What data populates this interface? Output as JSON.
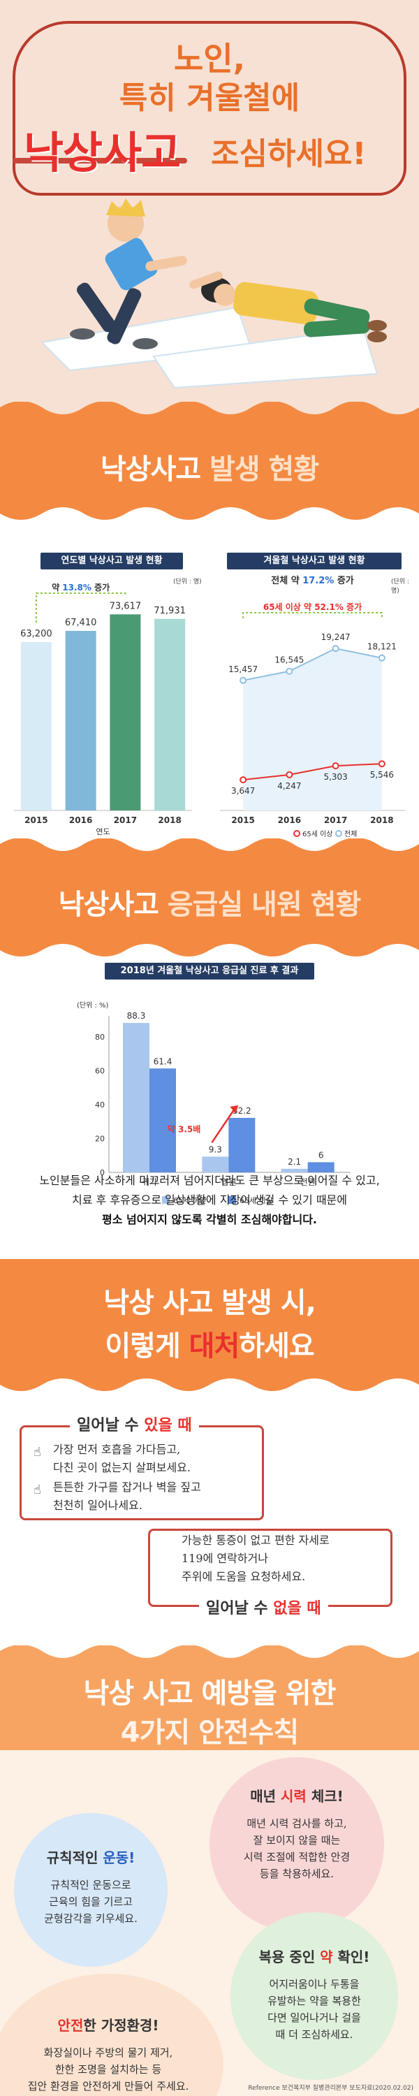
{
  "hero": {
    "line1": "노인,",
    "line2": "특히 겨울철에",
    "big": "낙상사고",
    "after": "조심하세요!"
  },
  "section1": {
    "title_part1": "낙상사고",
    "title_part2": "발생 현황"
  },
  "section2": {
    "title_part1": "낙상사고",
    "title_part2": "응급실 내원 현황"
  },
  "section3": {
    "title_line1": "낙상 사고 발생 시,",
    "title_line2_a": "이렇게",
    "title_line2_b": "대처",
    "title_line2_c": "하세요",
    "box1": {
      "title_a": "일어날 수",
      "title_b": "있을 때",
      "items": [
        "가장 먼저 호흡을 가다듬고,",
        "다친 곳이 없는지 살펴보세요.",
        "튼튼한 가구를 잡거나 벽을 짚고",
        "천천히 일어나세요."
      ]
    },
    "box2": {
      "title_a": "일어날 수",
      "title_b": "없을 때",
      "items": [
        "가능한 통증이 없고 편한 자세로",
        "119에 연락하거나",
        "주위에 도움을 요청하세요."
      ]
    }
  },
  "section4": {
    "title_line1": "낙상 사고 예방을 위한",
    "title_line2": "4가지 안전수칙",
    "tips": [
      {
        "title_a": "규칙적인",
        "title_b": "운동!",
        "accent": "#2a5fbf",
        "lines": [
          "규칙적인 운동으로",
          "근육의 힘을 기르고",
          "균형감각을 키우세요."
        ]
      },
      {
        "title_a": "매년",
        "title_b": "시력",
        "title_c": "체크!",
        "accent": "#e8302d",
        "lines": [
          "매년 시력 검사를 하고,",
          "잘 보이지 않을 때는",
          "시력 조절에 적합한 안경",
          "등을 착용하세요."
        ]
      },
      {
        "title_a": "복용 중인",
        "title_b": "약",
        "title_c": "확인!",
        "accent": "#e8302d",
        "lines": [
          "어지러움이나 두통을",
          "유발하는 약을 복용한",
          "다면 일어나거나 걸을",
          "때 더 조심하세요."
        ]
      },
      {
        "title_a": "안전",
        "title_b": "한 가정환경!",
        "accent": "#e8302d",
        "lines": [
          "화장실이나 주방의 물기 제거,",
          "한한 조명을 설치하는 등",
          "집안 환경을 안전하게 만들어 주세요."
        ]
      }
    ],
    "reference": "Reference 보건복지부 질병관리본부 보도자료(2020.02.02)"
  },
  "note": {
    "line1": "노인분들은 사소하게 미끄러져 넘어지더라도 큰 부상으로 이어질 수 있고,",
    "line2": "치료 후 후유증으로 일상생활에 지장이 생길 수 있기 때문에",
    "line3": "평소 넘어지지 않도록 각별히 조심해야합니다."
  },
  "chart_data": [
    {
      "type": "bar",
      "title": "연도별 낙상사고 발생 현황",
      "unit": "(단위 : 명)",
      "xlabel": "연도",
      "categories": [
        "2015",
        "2016",
        "2017",
        "2018"
      ],
      "values": [
        63200,
        67410,
        73617,
        71931
      ],
      "value_labels": [
        "63,200",
        "67,410",
        "73,617",
        "71,931"
      ],
      "annotation": "약 13.8% 증가",
      "annotation_pct": "13.8%",
      "colors": [
        "#d6ebf5",
        "#7fb8d8",
        "#4a9a73",
        "#a8d9d5"
      ],
      "ylim": [
        0,
        80000
      ]
    },
    {
      "type": "line",
      "title": "겨울철 낙상사고 발생 현황",
      "unit": "(단위 : 명)",
      "annotation_total": "전체 약 17.2% 증가",
      "annotation_total_pct": "17.2%",
      "annotation_65": "65세 이상 약 52.1% 증가",
      "categories": [
        "2015",
        "2016",
        "2017",
        "2018"
      ],
      "series": [
        {
          "name": "65세 이상",
          "values": [
            3647,
            4247,
            5303,
            5546
          ],
          "labels": [
            "3,647",
            "4,247",
            "5,303",
            "5,546"
          ],
          "color": "#e8302d"
        },
        {
          "name": "전체",
          "values": [
            15457,
            16545,
            19247,
            18121
          ],
          "labels": [
            "15,457",
            "16,545",
            "19,247",
            "18,121"
          ],
          "color": "#8fc0e0"
        }
      ],
      "ylim": [
        0,
        22000
      ]
    },
    {
      "type": "bar",
      "title": "2018년 겨울철 낙상사고 응급실 진료 후 결과",
      "unit": "(단위 : %)",
      "categories": [
        "귀가",
        "입원",
        "전원"
      ],
      "series": [
        {
          "name": "65세 미만",
          "values": [
            88.3,
            9.3,
            2.1
          ],
          "labels": [
            "88.3",
            "9.3",
            "2.1"
          ],
          "color": "#a9c6ef"
        },
        {
          "name": "65세 이상",
          "values": [
            61.4,
            32.2,
            6.0
          ],
          "labels": [
            "61.4",
            "32.2",
            "6"
          ],
          "color": "#5e8fe0"
        }
      ],
      "yticks": [
        "0",
        "20",
        "40",
        "60",
        "80"
      ],
      "ylim": [
        0,
        90
      ],
      "annotation": "약 3.5배"
    }
  ]
}
